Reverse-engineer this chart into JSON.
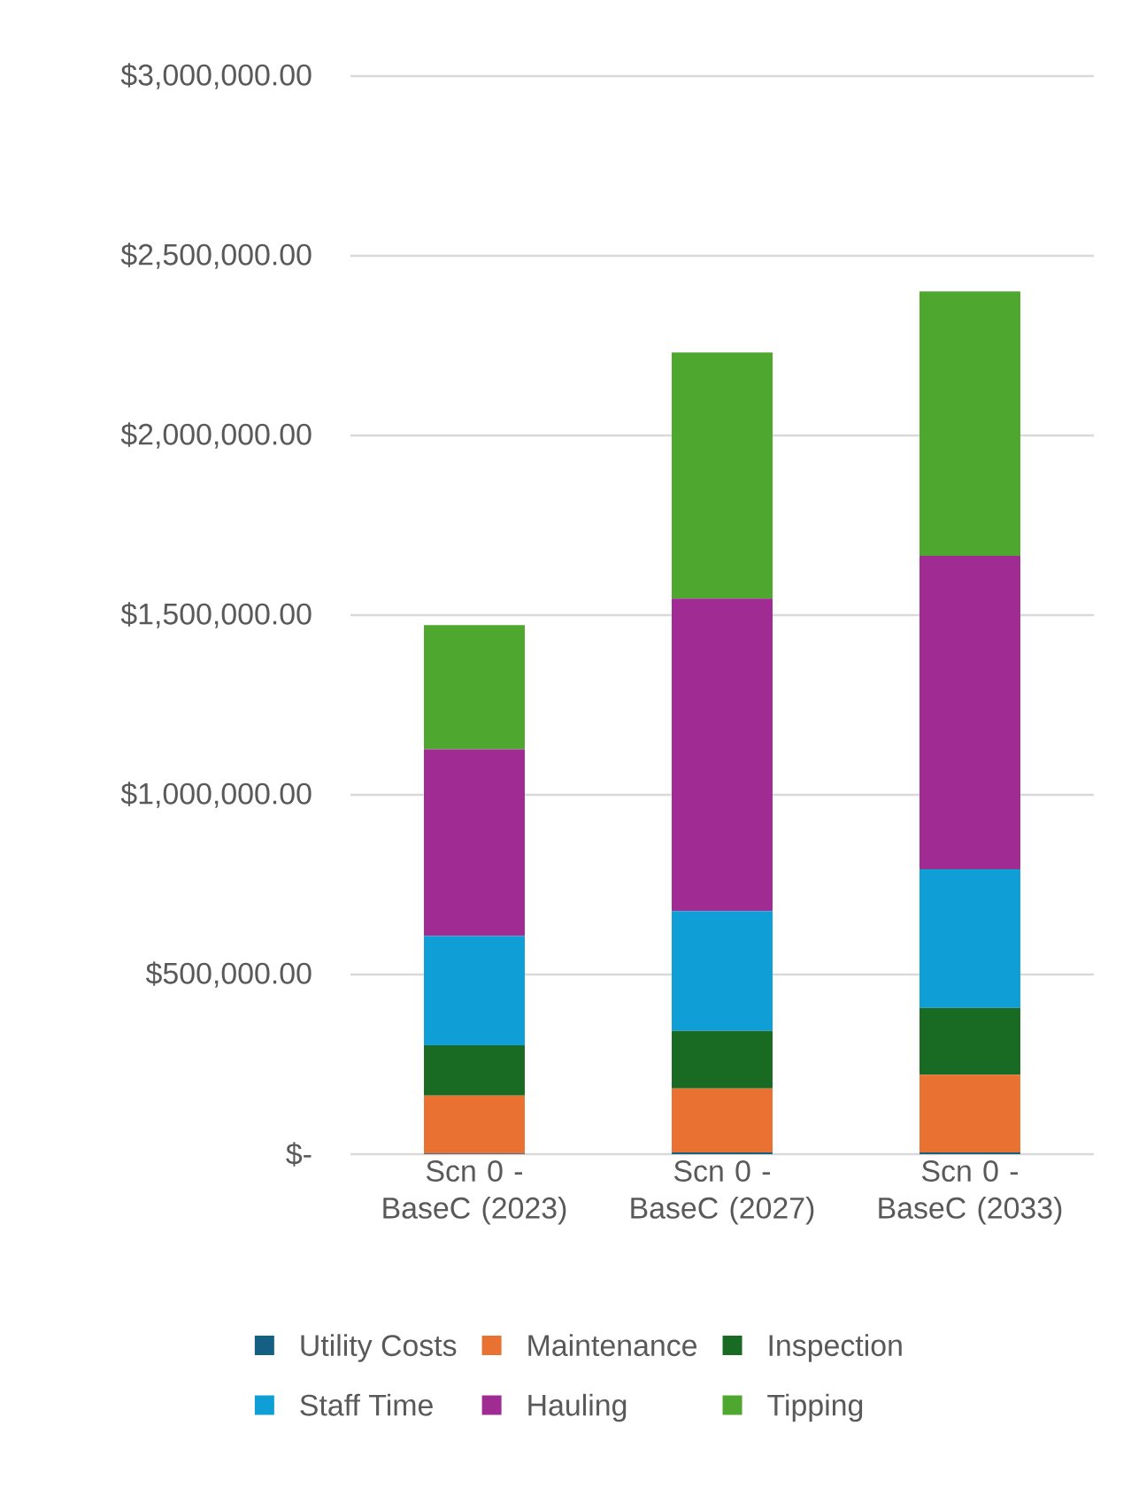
{
  "chart_data": {
    "type": "bar",
    "stacked": true,
    "categories": [
      "Scn 0 - BaseC (2023)",
      "Scn 0 - BaseC (2027)",
      "Scn 0 - BaseC (2033)"
    ],
    "series": [
      {
        "name": "Utility Costs",
        "color": "#156082",
        "values": [
          2000,
          5000,
          5000
        ]
      },
      {
        "name": "Maintenance",
        "color": "#e97132",
        "values": [
          161000,
          178000,
          216000
        ]
      },
      {
        "name": "Inspection",
        "color": "#196b24",
        "values": [
          140000,
          160000,
          186000
        ]
      },
      {
        "name": "Staff Time",
        "color": "#0f9ed5",
        "values": [
          304000,
          334000,
          386000
        ]
      },
      {
        "name": "Hauling",
        "color": "#a02b93",
        "values": [
          520000,
          869000,
          872000
        ]
      },
      {
        "name": "Tipping",
        "color": "#4ea72e",
        "values": [
          345000,
          685000,
          736000
        ]
      }
    ],
    "ylim": [
      0,
      3000000
    ],
    "yticks": [
      {
        "value": 0,
        "label": "$-"
      },
      {
        "value": 500000,
        "label": "$500,000.00"
      },
      {
        "value": 1000000,
        "label": "$1,000,000.00"
      },
      {
        "value": 1500000,
        "label": "$1,500,000.00"
      },
      {
        "value": 2000000,
        "label": "$2,000,000.00"
      },
      {
        "value": 2500000,
        "label": "$2,500,000.00"
      },
      {
        "value": 3000000,
        "label": "$3,000,000.00"
      }
    ],
    "grid": "y",
    "legend": "bottom"
  }
}
